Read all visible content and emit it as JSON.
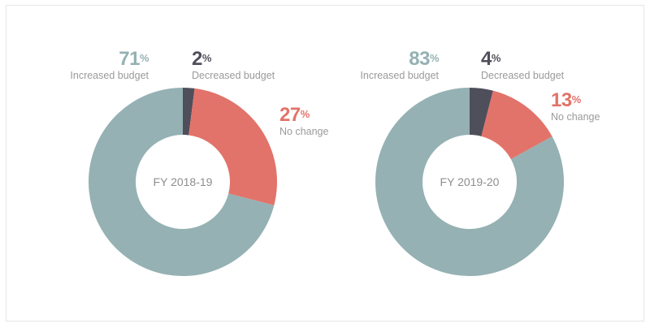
{
  "colors": {
    "increased": "#95b1b3",
    "decreased": "#4f4e5b",
    "no_change": "#e2736a",
    "caption": "#9a9a9a"
  },
  "chart_data": [
    {
      "type": "pie",
      "subtype": "donut",
      "center_label": "FY 2018-19",
      "slices": [
        {
          "key": "decreased",
          "label": "Decreased budget",
          "value": 2,
          "display": "2"
        },
        {
          "key": "no_change",
          "label": "No change",
          "value": 27,
          "display": "27"
        },
        {
          "key": "increased",
          "label": "Increased budget",
          "value": 71,
          "display": "71"
        }
      ],
      "unit": "%"
    },
    {
      "type": "pie",
      "subtype": "donut",
      "center_label": "FY 2019-20",
      "slices": [
        {
          "key": "decreased",
          "label": "Decreased budget",
          "value": 4,
          "display": "4"
        },
        {
          "key": "no_change",
          "label": "No change",
          "value": 13,
          "display": "13"
        },
        {
          "key": "increased",
          "label": "Increased budget",
          "value": 83,
          "display": "83"
        }
      ],
      "unit": "%"
    }
  ]
}
